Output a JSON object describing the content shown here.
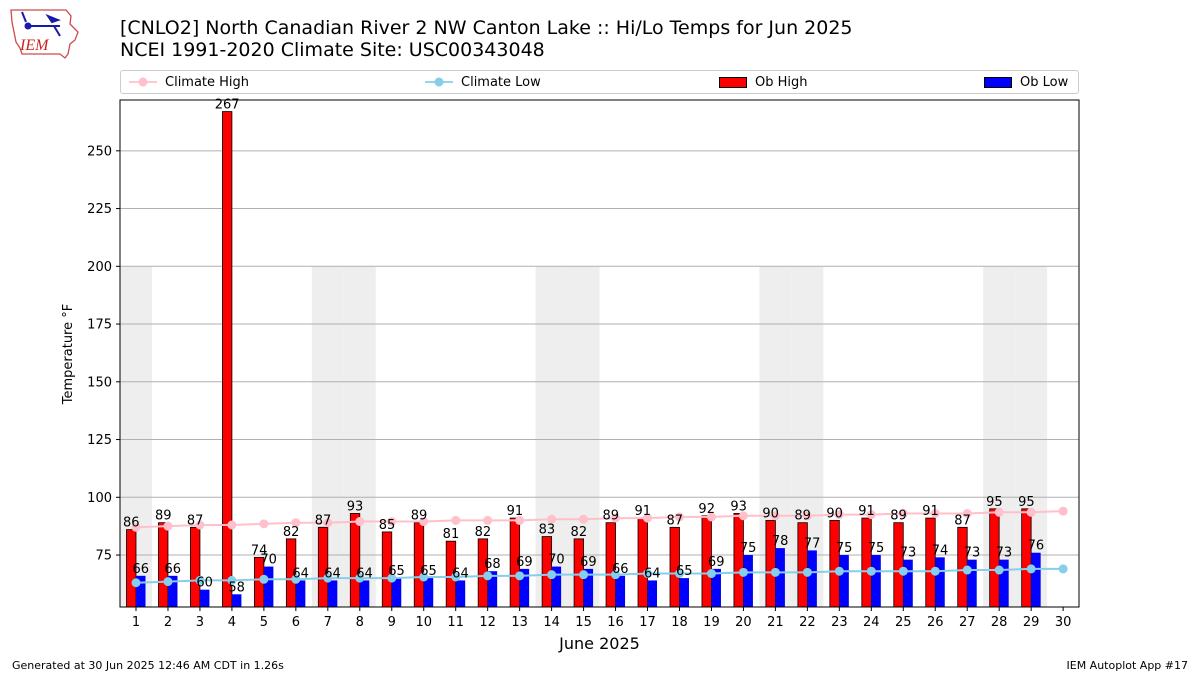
{
  "header": {
    "title": "[CNLO2] North Canadian River 2 NW Canton Lake :: Hi/Lo Temps for Jun 2025",
    "subtitle": "NCEI 1991-2020 Climate Site: USC00343048",
    "logo_text": "IEM"
  },
  "legend": {
    "climate_high": "Climate High",
    "climate_low": "Climate Low",
    "ob_high": "Ob High",
    "ob_low": "Ob Low"
  },
  "footer": {
    "generated": "Generated at 30 Jun 2025 12:46 AM CDT in 1.26s",
    "app": "IEM Autoplot App #17"
  },
  "colors": {
    "ob_high": "#ff0000",
    "ob_low": "#0000ff",
    "climate_high": "#ffc0cb",
    "climate_low": "#87ceeb",
    "weekend_shade": "#eeeeee",
    "grid": "#b0b0b0"
  },
  "chart_data": {
    "type": "bar",
    "xlabel": "June 2025",
    "ylabel": "Temperature °F",
    "ylim": [
      52.5,
      272
    ],
    "yticks": [
      75,
      100,
      125,
      150,
      175,
      200,
      225,
      250
    ],
    "days": [
      1,
      2,
      3,
      4,
      5,
      6,
      7,
      8,
      9,
      10,
      11,
      12,
      13,
      14,
      15,
      16,
      17,
      18,
      19,
      20,
      21,
      22,
      23,
      24,
      25,
      26,
      27,
      28,
      29,
      30
    ],
    "shade_top": 200,
    "weekend_days": [
      1,
      7,
      8,
      14,
      15,
      21,
      22,
      28,
      29
    ],
    "grid": "horizontal",
    "legend_position": "top",
    "series": [
      {
        "name": "Ob High",
        "kind": "bar",
        "values": [
          86,
          89,
          87,
          267,
          74,
          82,
          87,
          93,
          85,
          89,
          81,
          82,
          91,
          83,
          82,
          89,
          91,
          87,
          92,
          93,
          90,
          89,
          90,
          91,
          89,
          91,
          87,
          95,
          95,
          null
        ]
      },
      {
        "name": "Ob Low",
        "kind": "bar",
        "values": [
          66,
          66,
          60,
          58,
          70,
          64,
          64,
          64,
          65,
          65,
          64,
          68,
          69,
          70,
          69,
          66,
          64,
          65,
          69,
          75,
          78,
          77,
          75,
          75,
          73,
          74,
          73,
          73,
          76,
          null
        ]
      },
      {
        "name": "Climate High",
        "kind": "line",
        "values": [
          87,
          87.5,
          88,
          88,
          88.5,
          89,
          89,
          89.5,
          89.5,
          89.5,
          90,
          90,
          90,
          90.5,
          90.5,
          91,
          91,
          91.5,
          91.5,
          92,
          92,
          92,
          92.5,
          92.5,
          93,
          93,
          93,
          93.5,
          93.5,
          94
        ]
      },
      {
        "name": "Climate Low",
        "kind": "line",
        "values": [
          63,
          63.5,
          64,
          64,
          64.5,
          64.5,
          65,
          65,
          65,
          65.5,
          65.5,
          66,
          66,
          66.5,
          66.5,
          66.5,
          67,
          67,
          67,
          67.5,
          67.5,
          67.5,
          68,
          68,
          68,
          68,
          68.5,
          68.5,
          69,
          69
        ]
      }
    ]
  }
}
